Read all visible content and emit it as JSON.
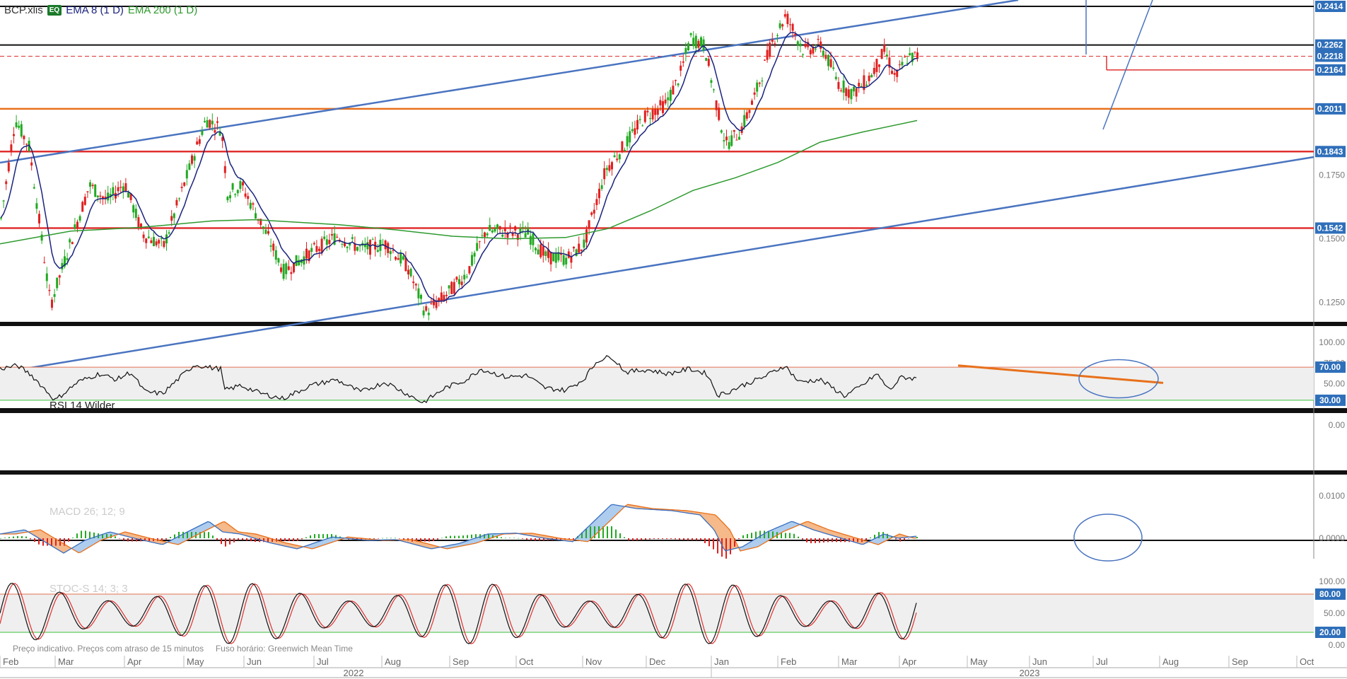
{
  "header": {
    "symbol": "BCP.xlis",
    "badge": "EQ",
    "ema_short": "EMA 8 (1 D)",
    "ema_long": "EMA 200 (1 D)"
  },
  "footer_note": {
    "quote": "Preço indicativo. Preços com atraso de 15 minutos",
    "tz": "Fuso horário: Greenwich Mean Time"
  },
  "colors": {
    "up": "#22aa22",
    "down": "#e02020",
    "ema8": "#1a237e",
    "ema200": "#2e9a2e",
    "trend": "#4a74c0",
    "support": "#e03030",
    "orange": "#e8701a",
    "label_bg": "#2f6fba"
  },
  "chart_data": [
    {
      "type": "candlestick",
      "title": "BCP.xlis",
      "y_ticks": [
        "0.1250",
        "0.1500",
        "0.1750"
      ],
      "ylim": [
        0.1145,
        0.242
      ],
      "levels": [
        {
          "value": 0.2414,
          "label": "0.2414",
          "style": "black"
        },
        {
          "value": 0.2262,
          "label": "0.2262",
          "style": "black"
        },
        {
          "value": 0.2218,
          "label": "0.2218",
          "style": "red-dashed"
        },
        {
          "value": 0.2164,
          "label": "0.2164",
          "style": "red-short"
        },
        {
          "value": 0.2011,
          "label": "0.2011",
          "style": "orange"
        },
        {
          "value": 0.1843,
          "label": "0.1843",
          "style": "red"
        },
        {
          "value": 0.1542,
          "label": "0.1542",
          "style": "red"
        }
      ],
      "anchors": [
        {
          "x": 0,
          "y": 0.158
        },
        {
          "x": 20,
          "y": 0.197
        },
        {
          "x": 40,
          "y": 0.186
        },
        {
          "x": 70,
          "y": 0.124
        },
        {
          "x": 100,
          "y": 0.15
        },
        {
          "x": 125,
          "y": 0.171
        },
        {
          "x": 150,
          "y": 0.165
        },
        {
          "x": 175,
          "y": 0.172
        },
        {
          "x": 200,
          "y": 0.152
        },
        {
          "x": 230,
          "y": 0.147
        },
        {
          "x": 255,
          "y": 0.168
        },
        {
          "x": 290,
          "y": 0.197
        },
        {
          "x": 312,
          "y": 0.193
        },
        {
          "x": 320,
          "y": 0.168
        },
        {
          "x": 340,
          "y": 0.171
        },
        {
          "x": 370,
          "y": 0.155
        },
        {
          "x": 400,
          "y": 0.137
        },
        {
          "x": 440,
          "y": 0.145
        },
        {
          "x": 475,
          "y": 0.151
        },
        {
          "x": 510,
          "y": 0.146
        },
        {
          "x": 545,
          "y": 0.148
        },
        {
          "x": 575,
          "y": 0.139
        },
        {
          "x": 600,
          "y": 0.121
        },
        {
          "x": 630,
          "y": 0.128
        },
        {
          "x": 660,
          "y": 0.137
        },
        {
          "x": 685,
          "y": 0.153
        },
        {
          "x": 715,
          "y": 0.153
        },
        {
          "x": 745,
          "y": 0.152
        },
        {
          "x": 770,
          "y": 0.143
        },
        {
          "x": 800,
          "y": 0.142
        },
        {
          "x": 825,
          "y": 0.148
        },
        {
          "x": 855,
          "y": 0.177
        },
        {
          "x": 880,
          "y": 0.186
        },
        {
          "x": 910,
          "y": 0.198
        },
        {
          "x": 940,
          "y": 0.203
        },
        {
          "x": 960,
          "y": 0.214
        },
        {
          "x": 975,
          "y": 0.229
        },
        {
          "x": 995,
          "y": 0.226
        },
        {
          "x": 1010,
          "y": 0.205
        },
        {
          "x": 1025,
          "y": 0.187
        },
        {
          "x": 1045,
          "y": 0.192
        },
        {
          "x": 1065,
          "y": 0.205
        },
        {
          "x": 1090,
          "y": 0.227
        },
        {
          "x": 1110,
          "y": 0.238
        },
        {
          "x": 1135,
          "y": 0.224
        },
        {
          "x": 1160,
          "y": 0.226
        },
        {
          "x": 1185,
          "y": 0.211
        },
        {
          "x": 1205,
          "y": 0.207
        },
        {
          "x": 1230,
          "y": 0.214
        },
        {
          "x": 1250,
          "y": 0.224
        },
        {
          "x": 1265,
          "y": 0.213
        },
        {
          "x": 1280,
          "y": 0.221
        },
        {
          "x": 1297,
          "y": 0.2218
        }
      ],
      "ema200": [
        {
          "x": 0,
          "y": 0.148
        },
        {
          "x": 100,
          "y": 0.153
        },
        {
          "x": 200,
          "y": 0.1545
        },
        {
          "x": 300,
          "y": 0.157
        },
        {
          "x": 360,
          "y": 0.1575
        },
        {
          "x": 480,
          "y": 0.1555
        },
        {
          "x": 560,
          "y": 0.1535
        },
        {
          "x": 640,
          "y": 0.151
        },
        {
          "x": 720,
          "y": 0.15
        },
        {
          "x": 800,
          "y": 0.1505
        },
        {
          "x": 860,
          "y": 0.154
        },
        {
          "x": 920,
          "y": 0.161
        },
        {
          "x": 980,
          "y": 0.169
        },
        {
          "x": 1040,
          "y": 0.174
        },
        {
          "x": 1100,
          "y": 0.18
        },
        {
          "x": 1160,
          "y": 0.188
        },
        {
          "x": 1220,
          "y": 0.192
        },
        {
          "x": 1297,
          "y": 0.1965
        }
      ]
    },
    {
      "type": "line",
      "title": "RSI 14 Wilder",
      "y_ticks": [
        "100.00",
        "75.00",
        "50.00",
        "0.00"
      ],
      "levels": [
        {
          "value": 70,
          "label": "70.00"
        },
        {
          "value": 30,
          "label": "30.00"
        }
      ],
      "ylim": [
        0,
        100
      ],
      "anchors": [
        {
          "x": 0,
          "y": 68
        },
        {
          "x": 25,
          "y": 72
        },
        {
          "x": 45,
          "y": 60
        },
        {
          "x": 78,
          "y": 30
        },
        {
          "x": 110,
          "y": 52
        },
        {
          "x": 140,
          "y": 62
        },
        {
          "x": 165,
          "y": 55
        },
        {
          "x": 185,
          "y": 64
        },
        {
          "x": 205,
          "y": 40
        },
        {
          "x": 230,
          "y": 38
        },
        {
          "x": 255,
          "y": 58
        },
        {
          "x": 275,
          "y": 73
        },
        {
          "x": 300,
          "y": 69
        },
        {
          "x": 312,
          "y": 68
        },
        {
          "x": 318,
          "y": 42
        },
        {
          "x": 340,
          "y": 48
        },
        {
          "x": 370,
          "y": 38
        },
        {
          "x": 400,
          "y": 32
        },
        {
          "x": 440,
          "y": 48
        },
        {
          "x": 475,
          "y": 55
        },
        {
          "x": 510,
          "y": 40
        },
        {
          "x": 545,
          "y": 52
        },
        {
          "x": 575,
          "y": 38
        },
        {
          "x": 598,
          "y": 27
        },
        {
          "x": 630,
          "y": 45
        },
        {
          "x": 660,
          "y": 55
        },
        {
          "x": 680,
          "y": 68
        },
        {
          "x": 715,
          "y": 58
        },
        {
          "x": 745,
          "y": 60
        },
        {
          "x": 770,
          "y": 45
        },
        {
          "x": 800,
          "y": 42
        },
        {
          "x": 825,
          "y": 55
        },
        {
          "x": 845,
          "y": 78
        },
        {
          "x": 865,
          "y": 83
        },
        {
          "x": 885,
          "y": 64
        },
        {
          "x": 915,
          "y": 67
        },
        {
          "x": 945,
          "y": 62
        },
        {
          "x": 975,
          "y": 68
        },
        {
          "x": 1000,
          "y": 62
        },
        {
          "x": 1015,
          "y": 36
        },
        {
          "x": 1030,
          "y": 40
        },
        {
          "x": 1050,
          "y": 48
        },
        {
          "x": 1080,
          "y": 58
        },
        {
          "x": 1110,
          "y": 72
        },
        {
          "x": 1130,
          "y": 52
        },
        {
          "x": 1160,
          "y": 55
        },
        {
          "x": 1195,
          "y": 35
        },
        {
          "x": 1220,
          "y": 48
        },
        {
          "x": 1240,
          "y": 62
        },
        {
          "x": 1258,
          "y": 42
        },
        {
          "x": 1275,
          "y": 58
        },
        {
          "x": 1297,
          "y": 56
        }
      ]
    },
    {
      "type": "area",
      "title": "MACD 26; 12; 9",
      "y_ticks": [
        "0.0100",
        "0.0000"
      ],
      "ylim": [
        -0.004,
        0.011
      ],
      "anchors": [
        {
          "x": 0,
          "y": 0.001
        },
        {
          "x": 35,
          "y": 0.002
        },
        {
          "x": 60,
          "y": -0.0005
        },
        {
          "x": 90,
          "y": -0.0035
        },
        {
          "x": 120,
          "y": -0.0005
        },
        {
          "x": 155,
          "y": 0.0015
        },
        {
          "x": 190,
          "y": 0.0
        },
        {
          "x": 230,
          "y": -0.0015
        },
        {
          "x": 265,
          "y": 0.0015
        },
        {
          "x": 295,
          "y": 0.004
        },
        {
          "x": 315,
          "y": 0.0015
        },
        {
          "x": 340,
          "y": 0.001
        },
        {
          "x": 380,
          "y": -0.001
        },
        {
          "x": 420,
          "y": -0.0025
        },
        {
          "x": 470,
          "y": 0.0003
        },
        {
          "x": 520,
          "y": -0.0005
        },
        {
          "x": 560,
          "y": -0.0003
        },
        {
          "x": 610,
          "y": -0.0025
        },
        {
          "x": 650,
          "y": -0.0012
        },
        {
          "x": 690,
          "y": 0.001
        },
        {
          "x": 730,
          "y": 0.0012
        },
        {
          "x": 770,
          "y": 0.0
        },
        {
          "x": 810,
          "y": -0.0008
        },
        {
          "x": 840,
          "y": 0.004
        },
        {
          "x": 865,
          "y": 0.008
        },
        {
          "x": 900,
          "y": 0.007
        },
        {
          "x": 950,
          "y": 0.0065
        },
        {
          "x": 990,
          "y": 0.0055
        },
        {
          "x": 1010,
          "y": 0.002
        },
        {
          "x": 1025,
          "y": -0.003
        },
        {
          "x": 1050,
          "y": -0.002
        },
        {
          "x": 1085,
          "y": 0.0015
        },
        {
          "x": 1120,
          "y": 0.004
        },
        {
          "x": 1150,
          "y": 0.002
        },
        {
          "x": 1190,
          "y": 0.0
        },
        {
          "x": 1220,
          "y": -0.0015
        },
        {
          "x": 1250,
          "y": 0.001
        },
        {
          "x": 1270,
          "y": 0.0
        },
        {
          "x": 1297,
          "y": 0.0005
        }
      ]
    },
    {
      "type": "line",
      "title": "STOC-S 14; 3; 3",
      "y_ticks": [
        "100.00",
        "50.00",
        "0.00"
      ],
      "levels": [
        {
          "value": 80,
          "label": "80.00"
        },
        {
          "value": 20,
          "label": "20.00"
        }
      ],
      "ylim": [
        0,
        100
      ],
      "period": 34
    }
  ],
  "x_axis": {
    "months": [
      "Feb",
      "Mar",
      "Apr",
      "May",
      "Jun",
      "Jul",
      "Aug",
      "Sep",
      "Oct",
      "Nov",
      "Dec",
      "Jan",
      "Feb",
      "Mar",
      "Apr",
      "May",
      "Jun",
      "Jul",
      "Aug",
      "Sep",
      "Oct"
    ],
    "years": [
      "2022",
      "2023"
    ]
  }
}
